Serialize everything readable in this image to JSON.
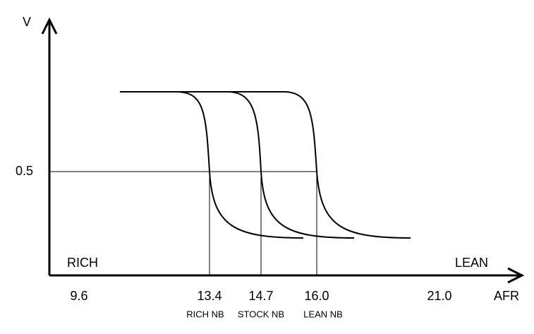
{
  "y_axis": {
    "label": "V",
    "tick": "0.5"
  },
  "x_axis": {
    "label": "AFR",
    "ticks": [
      "9.6",
      "13.4",
      "14.7",
      "16.0",
      "21.0"
    ]
  },
  "regions": {
    "left": "RICH",
    "right": "LEAN"
  },
  "switch_points": [
    "RICH NB",
    "STOCK NB",
    "LEAN NB"
  ]
}
